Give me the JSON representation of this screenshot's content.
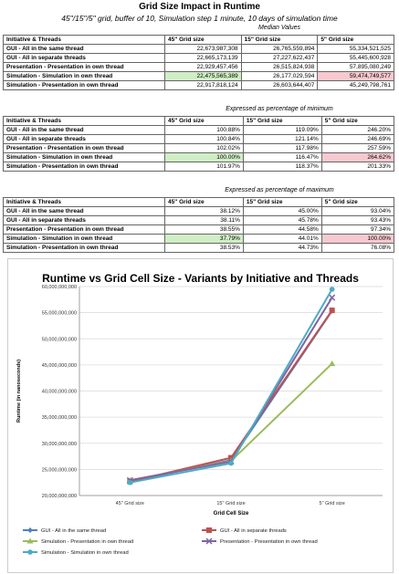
{
  "title": "Grid Size Impact in Runtime",
  "subtitle": "45\"/15\"/5\" grid, buffer of 10, Simulation step 1 minute, 10 days of simulation time",
  "header_label": "Initiative & Threads",
  "col_headers": [
    "45\" Grid size",
    "15\" Grid size",
    "5\" Grid size"
  ],
  "rows": [
    "GUI - All in the same thread",
    "GUI - All in separate threads",
    "Presentation - Presentation in own thread",
    "Simulation - Simulation in own thread",
    "Simulation - Presentation in own thread"
  ],
  "tables": [
    {
      "caption": "Median Values",
      "values": [
        [
          "22,673,987,308",
          "26,765,559,894",
          "55,334,521,525"
        ],
        [
          "22,665,173,139",
          "27,227,622,437",
          "55,445,600,928"
        ],
        [
          "22,929,457,456",
          "26,515,824,938",
          "57,895,080,249"
        ],
        [
          "22,475,565,389",
          "26,177,029,594",
          "59,474,749,577"
        ],
        [
          "22,917,818,124",
          "26,603,644,407",
          "45,249,798,761"
        ]
      ]
    },
    {
      "caption": "Expressed as percentage of minimum",
      "values": [
        [
          "100.88%",
          "119.09%",
          "246.20%"
        ],
        [
          "100.84%",
          "121.14%",
          "246.69%"
        ],
        [
          "102.02%",
          "117.98%",
          "257.59%"
        ],
        [
          "100.00%",
          "116.47%",
          "264.62%"
        ],
        [
          "101.97%",
          "118.37%",
          "201.33%"
        ]
      ]
    },
    {
      "caption": "Expressed as percentage of maximum",
      "values": [
        [
          "38.12%",
          "45.00%",
          "93.04%"
        ],
        [
          "38.11%",
          "45.78%",
          "93.43%"
        ],
        [
          "38.55%",
          "44.58%",
          "97.34%"
        ],
        [
          "37.79%",
          "44.01%",
          "100.00%"
        ],
        [
          "38.53%",
          "44.73%",
          "76.08%"
        ]
      ]
    }
  ],
  "highlight_colors": {
    "min": "#cfeec5",
    "max": "#f7c9cf"
  },
  "chart_data": {
    "type": "line",
    "title": "Runtime vs Grid Cell Size - Variants by Initiative and Threads",
    "xlabel": "Grid Cell Size",
    "ylabel": "Runtime (in nanoseconds)",
    "categories": [
      "45\" Grid size",
      "15\" Grid size",
      "5\" Grid size"
    ],
    "ylim": [
      20000000000,
      60000000000
    ],
    "yticks": [
      "20,000,000,000",
      "25,000,000,000",
      "30,000,000,000",
      "35,000,000,000",
      "40,000,000,000",
      "45,000,000,000",
      "50,000,000,000",
      "55,000,000,000",
      "60,000,000,000"
    ],
    "ytick_values": [
      20000000000,
      25000000000,
      30000000000,
      35000000000,
      40000000000,
      45000000000,
      50000000000,
      55000000000,
      60000000000
    ],
    "grid": true,
    "legend_position": "bottom",
    "series": [
      {
        "name": "GUI - All in the same thread",
        "color": "#4f81bd",
        "marker": "diamond",
        "values": [
          22673987308,
          26765559894,
          55334521525
        ]
      },
      {
        "name": "GUI - All in separate threads",
        "color": "#c0504d",
        "marker": "square",
        "values": [
          22665173139,
          27227622437,
          55445600928
        ]
      },
      {
        "name": "Simulation - Presentation in own thread",
        "color": "#9bbb59",
        "marker": "triangle",
        "values": [
          22917818124,
          26603644407,
          45249798761
        ]
      },
      {
        "name": "Presentation - Presentation in own thread",
        "color": "#8064a2",
        "marker": "x",
        "values": [
          22929457456,
          26515824938,
          57895080249
        ]
      },
      {
        "name": "Simulation - Simulation in own thread",
        "color": "#4bacc6",
        "marker": "star",
        "values": [
          22475565389,
          26177029594,
          59474749577
        ]
      }
    ]
  }
}
